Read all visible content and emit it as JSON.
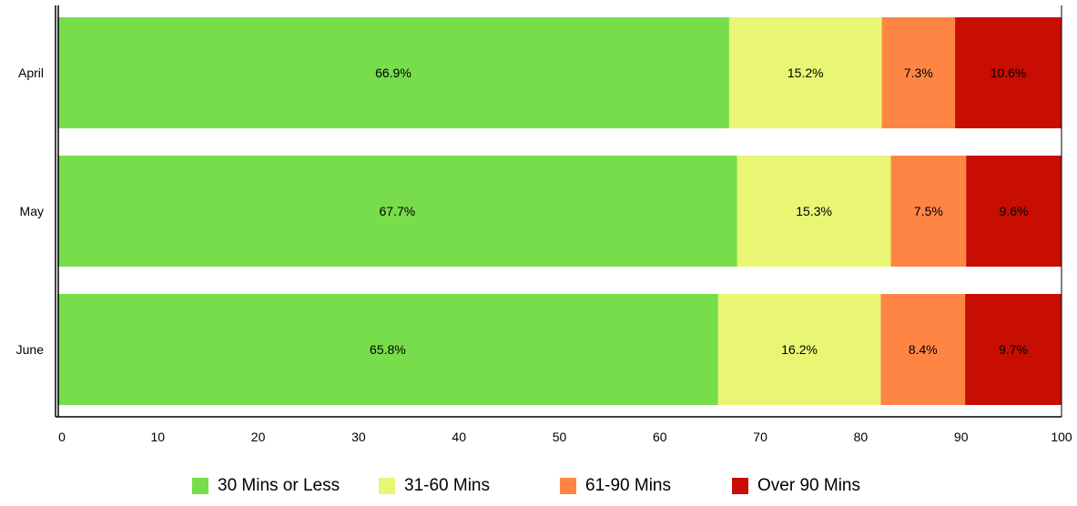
{
  "chart_data": {
    "type": "bar",
    "orientation": "horizontal",
    "stacked": true,
    "categories": [
      "April",
      "May",
      "June"
    ],
    "series": [
      {
        "name": "30 Mins or Less",
        "color": "#77DD4A",
        "values": [
          66.9,
          67.7,
          65.8
        ],
        "labels": [
          "66.9%",
          "67.7%",
          "65.8%"
        ]
      },
      {
        "name": "31-60 Mins",
        "color": "#E8F674",
        "values": [
          15.2,
          15.3,
          16.2
        ],
        "labels": [
          "15.2%",
          "15.3%",
          "16.2%"
        ]
      },
      {
        "name": "61-90 Mins",
        "color": "#FF8545",
        "values": [
          7.3,
          7.5,
          8.4
        ],
        "labels": [
          "7.3%",
          "7.5%",
          "8.4%"
        ]
      },
      {
        "name": "Over 90 Mins",
        "color": "#C80D02",
        "values": [
          10.6,
          9.6,
          9.7
        ],
        "labels": [
          "10.6%",
          "9.6%",
          "9.7%"
        ]
      }
    ],
    "xlim": [
      0,
      100
    ],
    "xticks": [
      "0",
      "10",
      "20",
      "30",
      "40",
      "50",
      "60",
      "70",
      "80",
      "90",
      "100"
    ],
    "title": "",
    "xlabel": "",
    "ylabel": "",
    "grid": false,
    "legend_position": "bottom"
  }
}
